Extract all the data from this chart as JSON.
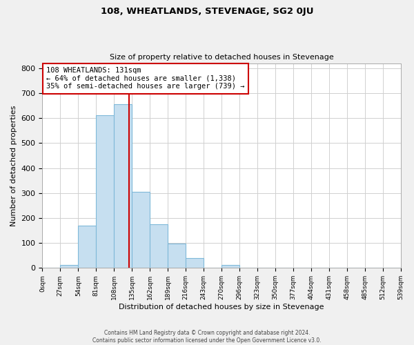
{
  "title": "108, WHEATLANDS, STEVENAGE, SG2 0JU",
  "subtitle": "Size of property relative to detached houses in Stevenage",
  "xlabel": "Distribution of detached houses by size in Stevenage",
  "ylabel": "Number of detached properties",
  "bar_edges": [
    0,
    27,
    54,
    81,
    108,
    135,
    162,
    189,
    216,
    243,
    270,
    297,
    324,
    351,
    378,
    405,
    432,
    459,
    486,
    513,
    540
  ],
  "bar_heights": [
    0,
    12,
    170,
    612,
    655,
    305,
    175,
    98,
    40,
    0,
    12,
    0,
    0,
    0,
    0,
    0,
    0,
    0,
    0,
    0
  ],
  "bar_color": "#c6dff0",
  "bar_edgecolor": "#7fb9d9",
  "vline_x": 131,
  "vline_color": "#cc0000",
  "annotation_text": "108 WHEATLANDS: 131sqm\n← 64% of detached houses are smaller (1,338)\n35% of semi-detached houses are larger (739) →",
  "annotation_box_color": "white",
  "annotation_box_edgecolor": "#cc0000",
  "ylim": [
    0,
    820
  ],
  "xlim": [
    0,
    540
  ],
  "tick_positions": [
    0,
    27,
    54,
    81,
    108,
    135,
    162,
    189,
    216,
    243,
    270,
    297,
    324,
    351,
    378,
    405,
    432,
    459,
    486,
    513,
    540
  ],
  "tick_labels": [
    "0sqm",
    "27sqm",
    "54sqm",
    "81sqm",
    "108sqm",
    "135sqm",
    "162sqm",
    "189sqm",
    "216sqm",
    "243sqm",
    "270sqm",
    "296sqm",
    "323sqm",
    "350sqm",
    "377sqm",
    "404sqm",
    "431sqm",
    "458sqm",
    "485sqm",
    "512sqm",
    "539sqm"
  ],
  "ytick_positions": [
    0,
    100,
    200,
    300,
    400,
    500,
    600,
    700,
    800
  ],
  "footer_text": "Contains HM Land Registry data © Crown copyright and database right 2024.\nContains public sector information licensed under the Open Government Licence v3.0.",
  "background_color": "#f0f0f0",
  "plot_background_color": "white",
  "grid_color": "#d0d0d0"
}
